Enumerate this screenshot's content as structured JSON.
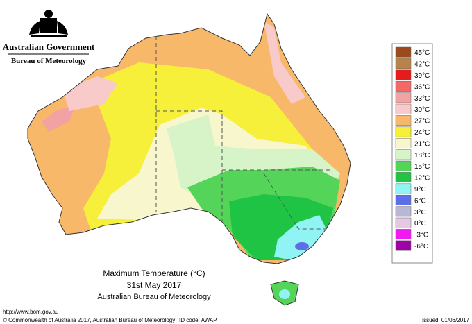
{
  "header": {
    "government": "Australian Government",
    "bureau": "Bureau of Meteorology"
  },
  "map": {
    "title": "Maximum Temperature (°C)",
    "date": "31st May 2017",
    "source": "Australian Bureau of Meteorology"
  },
  "legend": [
    {
      "label": "45°C",
      "color": "#9b4a1c"
    },
    {
      "label": "42°C",
      "color": "#b98348"
    },
    {
      "label": "39°C",
      "color": "#e61c1c"
    },
    {
      "label": "36°C",
      "color": "#f46868"
    },
    {
      "label": "33°C",
      "color": "#f2a2a2"
    },
    {
      "label": "30°C",
      "color": "#f8caca"
    },
    {
      "label": "27°C",
      "color": "#f8b86a"
    },
    {
      "label": "24°C",
      "color": "#f7f03a"
    },
    {
      "label": "21°C",
      "color": "#f7f6cc"
    },
    {
      "label": "18°C",
      "color": "#d6f4c8"
    },
    {
      "label": "15°C",
      "color": "#55d45a"
    },
    {
      "label": "12°C",
      "color": "#1fc444"
    },
    {
      "label": "9°C",
      "color": "#90f4f4"
    },
    {
      "label": "6°C",
      "color": "#5c6ee8"
    },
    {
      "label": "3°C",
      "color": "#b8b8d6"
    },
    {
      "label": "0°C",
      "color": "#e4c8e4"
    },
    {
      "label": "-3°C",
      "color": "#f21af2"
    },
    {
      "label": "-6°C",
      "color": "#a000a8"
    }
  ],
  "footer": {
    "url": "http://www.bom.gov.au",
    "copyright": "© Commonwealth of Australia 2017, Australian Bureau of Meteorology",
    "id_code": "ID code: AWAP",
    "issued": "Issued: 01/06/2017"
  }
}
